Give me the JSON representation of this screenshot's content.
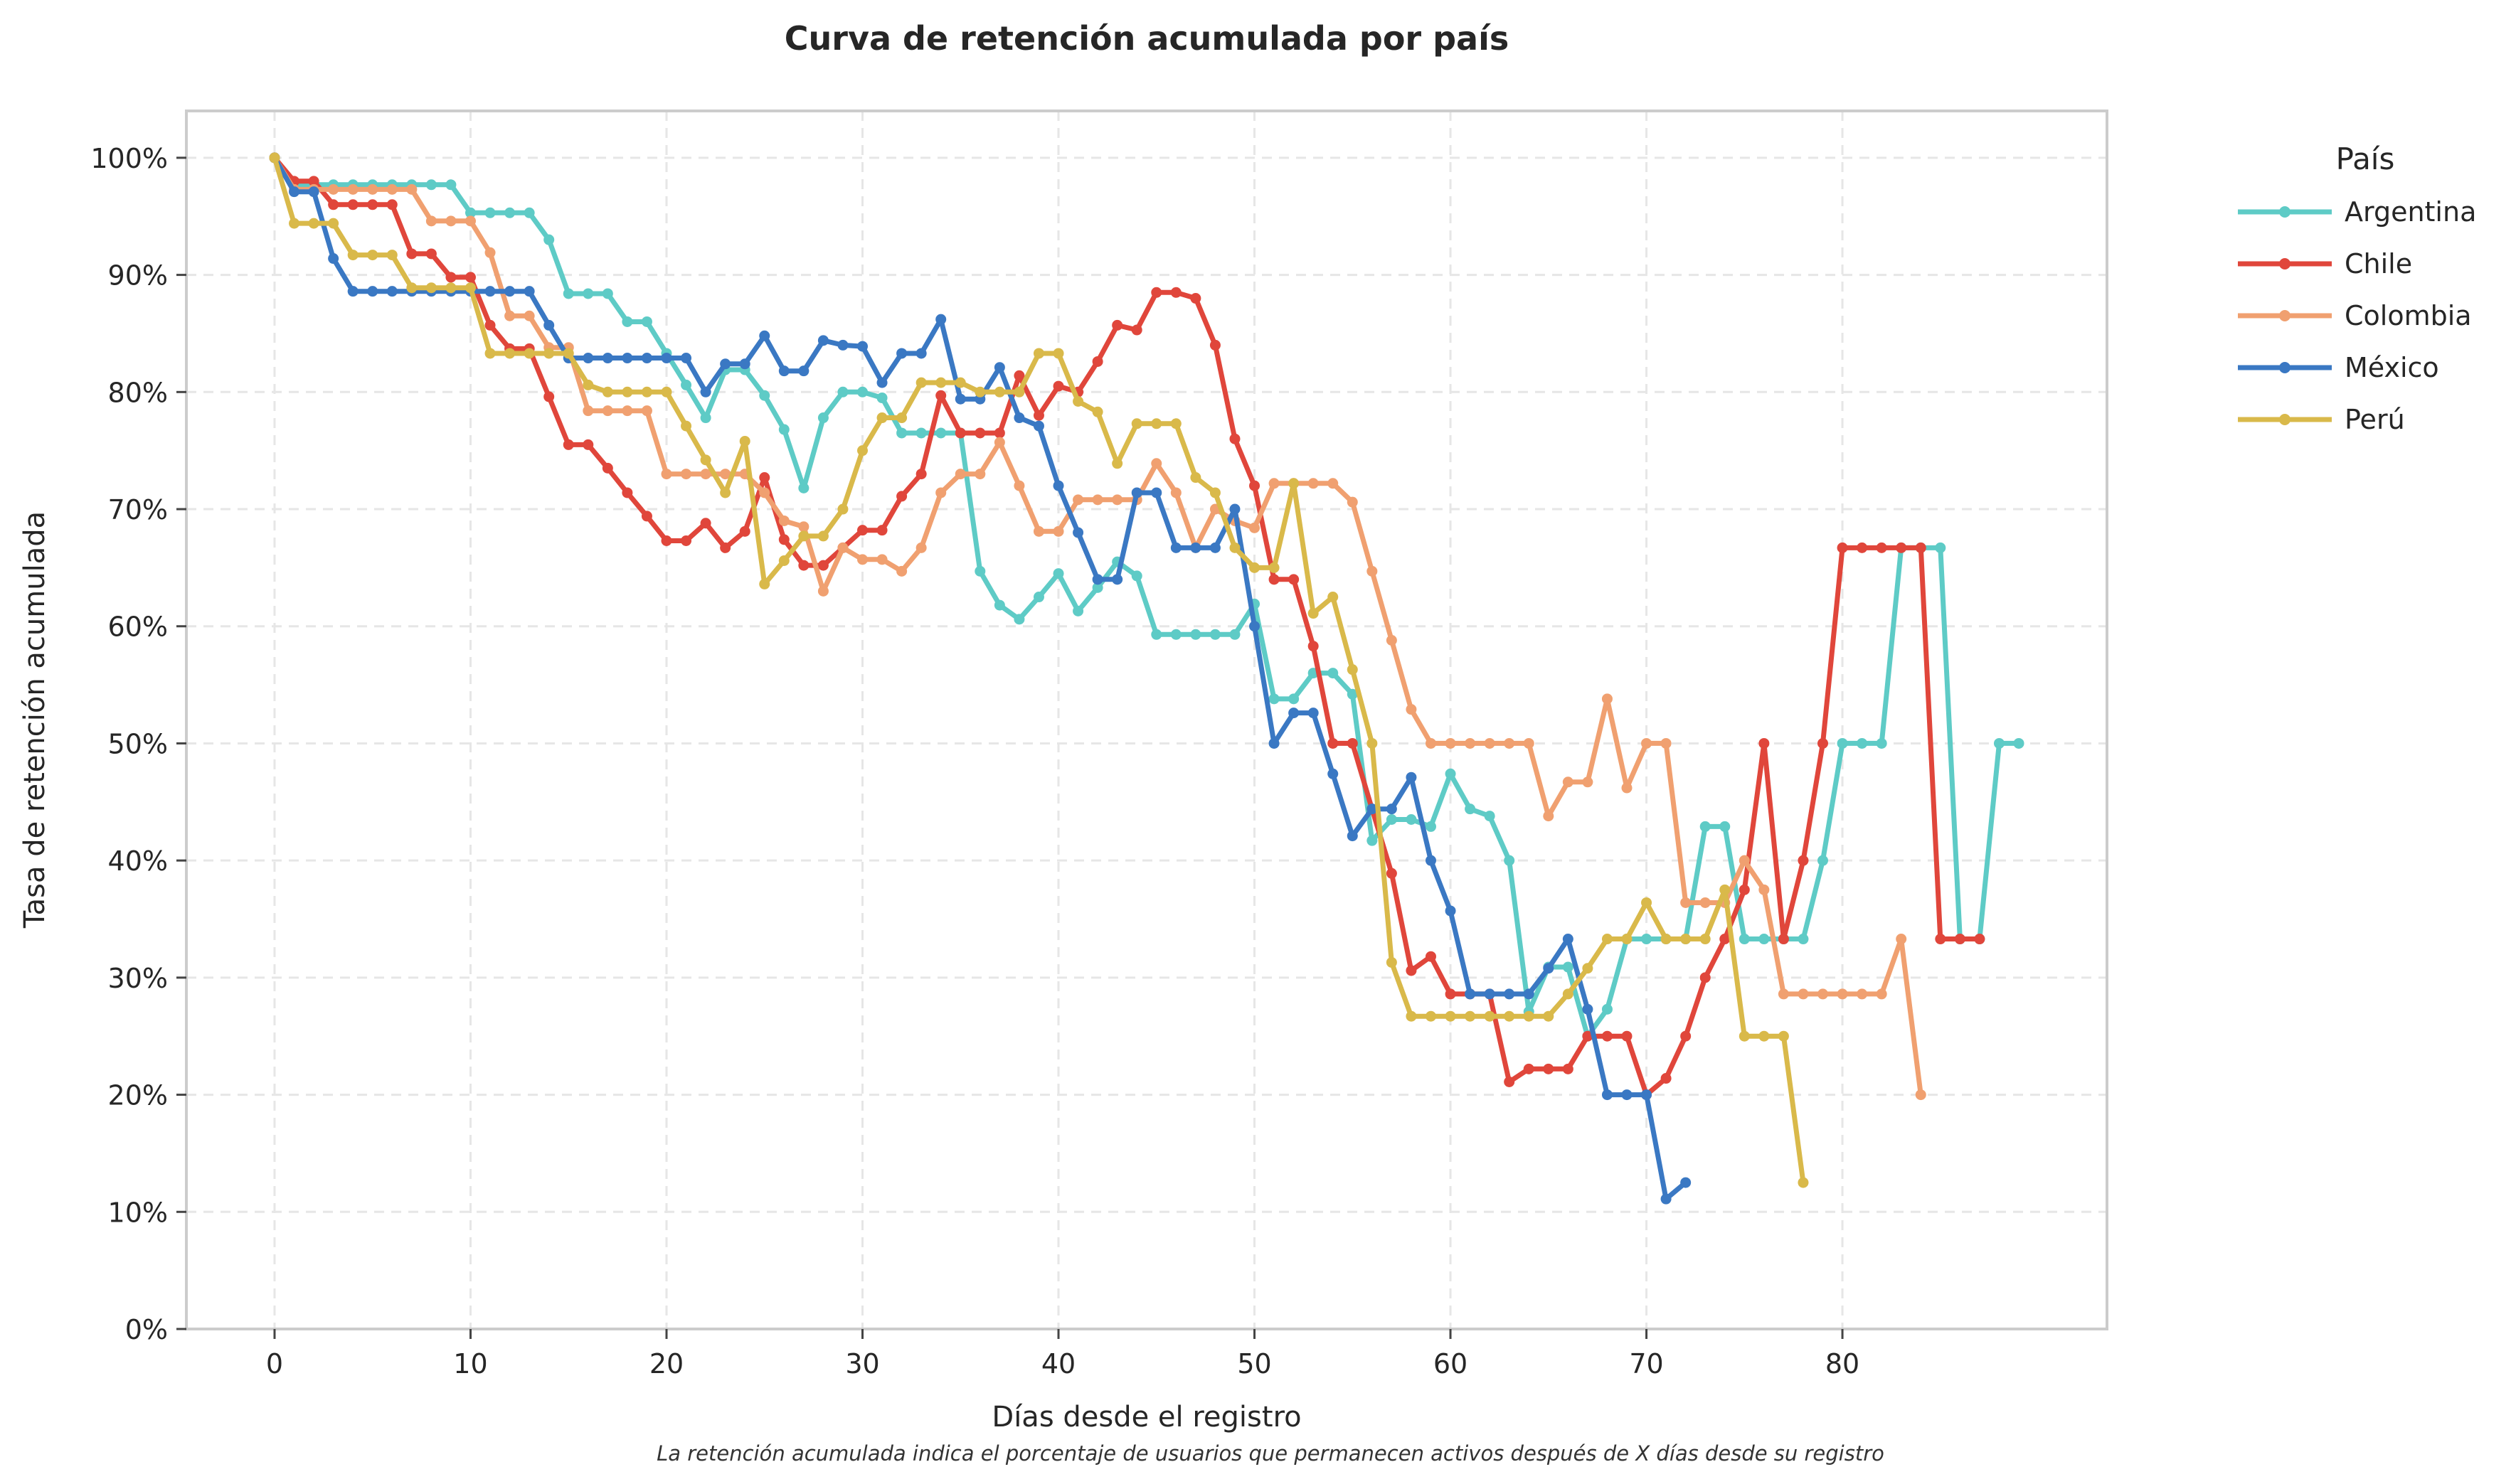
{
  "chart_data": {
    "type": "line",
    "title": "Curva de retención acumulada por país",
    "xlabel": "Días desde el registro",
    "ylabel": "Tasa de retención acumulada",
    "caption": "La retención acumulada indica el porcentaje de usuarios que permanecen activos después de X días desde su registro",
    "xlim": [
      -4.5,
      93.5
    ],
    "ylim": [
      0,
      1.04
    ],
    "x_ticks": [
      0,
      10,
      20,
      30,
      40,
      50,
      60,
      70,
      80
    ],
    "x_tick_labels": [
      "0",
      "10",
      "20",
      "30",
      "40",
      "50",
      "60",
      "70",
      "80"
    ],
    "y_ticks": [
      0,
      0.1,
      0.2,
      0.3,
      0.4,
      0.5,
      0.6,
      0.7,
      0.8,
      0.9,
      1.0
    ],
    "y_tick_labels": [
      "0%",
      "10%",
      "20%",
      "30%",
      "40%",
      "50%",
      "60%",
      "70%",
      "80%",
      "90%",
      "100%"
    ],
    "grid": true,
    "legend": {
      "title": "País",
      "position": "outside-top-right"
    },
    "series": [
      {
        "name": "Argentina",
        "color": "#5ecbc6",
        "x": [
          0,
          1,
          2,
          3,
          4,
          5,
          6,
          7,
          8,
          9,
          10,
          11,
          12,
          13,
          14,
          15,
          16,
          17,
          18,
          19,
          20,
          21,
          22,
          23,
          24,
          25,
          26,
          27,
          28,
          29,
          30,
          31,
          32,
          33,
          34,
          35,
          36,
          37,
          38,
          39,
          40,
          41,
          42,
          43,
          44,
          45,
          46,
          47,
          48,
          49,
          50,
          51,
          52,
          53,
          54,
          55,
          56,
          57,
          58,
          59,
          60,
          61,
          62,
          63,
          64,
          65,
          66,
          67,
          68,
          69,
          70,
          71,
          72,
          73,
          74,
          75,
          76,
          77,
          78,
          79,
          80,
          81,
          82,
          83,
          84,
          85,
          86,
          87,
          88,
          89
        ],
        "y": [
          1.0,
          0.977,
          0.977,
          0.977,
          0.977,
          0.977,
          0.977,
          0.977,
          0.977,
          0.977,
          0.953,
          0.953,
          0.953,
          0.953,
          0.93,
          0.884,
          0.884,
          0.884,
          0.86,
          0.86,
          0.833,
          0.806,
          0.778,
          0.819,
          0.819,
          0.797,
          0.768,
          0.718,
          0.778,
          0.8,
          0.8,
          0.795,
          0.765,
          0.765,
          0.765,
          0.765,
          0.647,
          0.618,
          0.606,
          0.625,
          0.645,
          0.613,
          0.633,
          0.655,
          0.643,
          0.593,
          0.593,
          0.593,
          0.593,
          0.593,
          0.619,
          0.538,
          0.538,
          0.56,
          0.56,
          0.542,
          0.417,
          0.435,
          0.435,
          0.429,
          0.474,
          0.444,
          0.438,
          0.4,
          0.271,
          0.309,
          0.309,
          0.25,
          0.273,
          0.333,
          0.333,
          0.333,
          0.333,
          0.429,
          0.429,
          0.333,
          0.333,
          0.333,
          0.333,
          0.4,
          0.5,
          0.5,
          0.5,
          0.667,
          0.667,
          0.667,
          0.333,
          0.333,
          0.5,
          0.5
        ]
      },
      {
        "name": "Chile",
        "color": "#e0463b",
        "x": [
          0,
          1,
          2,
          3,
          4,
          5,
          6,
          7,
          8,
          9,
          10,
          11,
          12,
          13,
          14,
          15,
          16,
          17,
          18,
          19,
          20,
          21,
          22,
          23,
          24,
          25,
          26,
          27,
          28,
          29,
          30,
          31,
          32,
          33,
          34,
          35,
          36,
          37,
          38,
          39,
          40,
          41,
          42,
          43,
          44,
          45,
          46,
          47,
          48,
          49,
          50,
          51,
          52,
          53,
          54,
          55,
          56,
          57,
          58,
          59,
          60,
          61,
          62,
          63,
          64,
          65,
          66,
          67,
          68,
          69,
          70,
          71,
          72,
          73,
          74,
          75,
          76,
          77,
          78,
          79,
          80,
          81,
          82,
          83,
          84,
          85,
          86,
          87
        ],
        "y": [
          1.0,
          0.98,
          0.98,
          0.96,
          0.96,
          0.96,
          0.96,
          0.918,
          0.918,
          0.898,
          0.898,
          0.857,
          0.837,
          0.837,
          0.796,
          0.755,
          0.755,
          0.735,
          0.714,
          0.694,
          0.673,
          0.673,
          0.688,
          0.667,
          0.681,
          0.727,
          0.674,
          0.652,
          0.652,
          0.667,
          0.682,
          0.682,
          0.711,
          0.73,
          0.797,
          0.765,
          0.765,
          0.765,
          0.814,
          0.78,
          0.805,
          0.8,
          0.826,
          0.857,
          0.853,
          0.885,
          0.885,
          0.88,
          0.84,
          0.76,
          0.72,
          0.64,
          0.64,
          0.583,
          0.5,
          0.5,
          0.444,
          0.389,
          0.306,
          0.318,
          0.286,
          0.286,
          0.286,
          0.211,
          0.222,
          0.222,
          0.222,
          0.25,
          0.25,
          0.25,
          0.2,
          0.214,
          0.25,
          0.3,
          0.333,
          0.375,
          0.5,
          0.333,
          0.4,
          0.5,
          0.667,
          0.667,
          0.667,
          0.667,
          0.667,
          0.333,
          0.333,
          0.333
        ]
      },
      {
        "name": "Colombia",
        "color": "#f0a070",
        "x": [
          0,
          1,
          2,
          3,
          4,
          5,
          6,
          7,
          8,
          9,
          10,
          11,
          12,
          13,
          14,
          15,
          16,
          17,
          18,
          19,
          20,
          21,
          22,
          23,
          24,
          25,
          26,
          27,
          28,
          29,
          30,
          31,
          32,
          33,
          34,
          35,
          36,
          37,
          38,
          39,
          40,
          41,
          42,
          43,
          44,
          45,
          46,
          47,
          48,
          49,
          50,
          51,
          52,
          53,
          54,
          55,
          56,
          57,
          58,
          59,
          60,
          61,
          62,
          63,
          64,
          65,
          66,
          67,
          68,
          69,
          70,
          71,
          72,
          73,
          74,
          75,
          76,
          77,
          78,
          79,
          80,
          81,
          82,
          83,
          84
        ],
        "y": [
          1.0,
          0.973,
          0.973,
          0.973,
          0.973,
          0.973,
          0.973,
          0.973,
          0.946,
          0.946,
          0.946,
          0.919,
          0.865,
          0.865,
          0.838,
          0.838,
          0.784,
          0.784,
          0.784,
          0.784,
          0.73,
          0.73,
          0.73,
          0.73,
          0.73,
          0.714,
          0.69,
          0.685,
          0.63,
          0.667,
          0.657,
          0.657,
          0.647,
          0.667,
          0.714,
          0.73,
          0.73,
          0.757,
          0.72,
          0.681,
          0.681,
          0.708,
          0.708,
          0.708,
          0.708,
          0.739,
          0.714,
          0.667,
          0.7,
          0.69,
          0.684,
          0.722,
          0.722,
          0.722,
          0.722,
          0.706,
          0.647,
          0.588,
          0.529,
          0.5,
          0.5,
          0.5,
          0.5,
          0.5,
          0.5,
          0.438,
          0.467,
          0.467,
          0.538,
          0.462,
          0.5,
          0.5,
          0.364,
          0.364,
          0.364,
          0.4,
          0.375,
          0.286,
          0.286,
          0.286,
          0.286,
          0.286,
          0.286,
          0.333,
          0.2
        ]
      },
      {
        "name": "México",
        "color": "#3a78c3",
        "x": [
          0,
          1,
          2,
          3,
          4,
          5,
          6,
          7,
          8,
          9,
          10,
          11,
          12,
          13,
          14,
          15,
          16,
          17,
          18,
          19,
          20,
          21,
          22,
          23,
          24,
          25,
          26,
          27,
          28,
          29,
          30,
          31,
          32,
          33,
          34,
          35,
          36,
          37,
          38,
          39,
          40,
          41,
          42,
          43,
          44,
          45,
          46,
          47,
          48,
          49,
          50,
          51,
          52,
          53,
          54,
          55,
          56,
          57,
          58,
          59,
          60,
          61,
          62,
          63,
          64,
          65,
          66,
          67,
          68,
          69,
          70,
          71,
          72
        ],
        "y": [
          1.0,
          0.971,
          0.971,
          0.914,
          0.886,
          0.886,
          0.886,
          0.886,
          0.886,
          0.886,
          0.886,
          0.886,
          0.886,
          0.886,
          0.857,
          0.829,
          0.829,
          0.829,
          0.829,
          0.829,
          0.829,
          0.829,
          0.8,
          0.824,
          0.824,
          0.848,
          0.818,
          0.818,
          0.844,
          0.84,
          0.839,
          0.808,
          0.833,
          0.833,
          0.862,
          0.794,
          0.794,
          0.821,
          0.778,
          0.771,
          0.72,
          0.68,
          0.64,
          0.64,
          0.714,
          0.714,
          0.667,
          0.667,
          0.667,
          0.7,
          0.6,
          0.5,
          0.526,
          0.526,
          0.474,
          0.421,
          0.444,
          0.444,
          0.471,
          0.4,
          0.357,
          0.286,
          0.286,
          0.286,
          0.286,
          0.308,
          0.333,
          0.273,
          0.2,
          0.2,
          0.2,
          0.111,
          0.125
        ]
      },
      {
        "name": "Perú",
        "color": "#d9b94a",
        "x": [
          0,
          1,
          2,
          3,
          4,
          5,
          6,
          7,
          8,
          9,
          10,
          11,
          12,
          13,
          14,
          15,
          16,
          17,
          18,
          19,
          20,
          21,
          22,
          23,
          24,
          25,
          26,
          27,
          28,
          29,
          30,
          31,
          32,
          33,
          34,
          35,
          36,
          37,
          38,
          39,
          40,
          41,
          42,
          43,
          44,
          45,
          46,
          47,
          48,
          49,
          50,
          51,
          52,
          53,
          54,
          55,
          56,
          57,
          58,
          59,
          60,
          61,
          62,
          63,
          64,
          65,
          66,
          67,
          68,
          69,
          70,
          71,
          72,
          73,
          74,
          75,
          76,
          77,
          78
        ],
        "y": [
          1.0,
          0.944,
          0.944,
          0.944,
          0.917,
          0.917,
          0.917,
          0.889,
          0.889,
          0.889,
          0.889,
          0.833,
          0.833,
          0.833,
          0.833,
          0.833,
          0.806,
          0.8,
          0.8,
          0.8,
          0.8,
          0.771,
          0.742,
          0.714,
          0.758,
          0.636,
          0.656,
          0.677,
          0.677,
          0.7,
          0.75,
          0.778,
          0.778,
          0.808,
          0.808,
          0.808,
          0.8,
          0.8,
          0.8,
          0.833,
          0.833,
          0.792,
          0.783,
          0.739,
          0.773,
          0.773,
          0.773,
          0.727,
          0.714,
          0.667,
          0.65,
          0.65,
          0.722,
          0.611,
          0.625,
          0.563,
          0.5,
          0.313,
          0.267,
          0.267,
          0.267,
          0.267,
          0.267,
          0.267,
          0.267,
          0.267,
          0.286,
          0.308,
          0.333,
          0.333,
          0.364,
          0.333,
          0.333,
          0.333,
          0.375,
          0.25,
          0.25,
          0.25,
          0.125
        ]
      }
    ]
  }
}
